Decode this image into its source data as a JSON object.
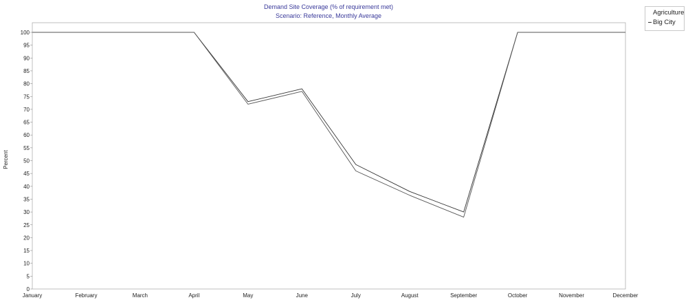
{
  "chart_data": {
    "type": "line",
    "title": "Demand Site Coverage (% of requirement met)",
    "subtitle": "Scenario: Reference,  Monthly Average",
    "ylabel": "Percent",
    "xlabel": "",
    "categories": [
      "January",
      "February",
      "March",
      "April",
      "May",
      "June",
      "July",
      "August",
      "September",
      "October",
      "November",
      "December"
    ],
    "ylim": [
      0,
      100
    ],
    "yticks": [
      0,
      5,
      10,
      15,
      20,
      25,
      30,
      35,
      40,
      45,
      50,
      55,
      60,
      65,
      70,
      75,
      80,
      85,
      90,
      95,
      100
    ],
    "grid": false,
    "legend_position": "top-right",
    "series": [
      {
        "name": "Agriculture",
        "values": [
          100,
          100,
          100,
          100,
          73,
          78,
          48.5,
          38,
          30,
          100,
          100,
          100
        ],
        "color": "#333333"
      },
      {
        "name": "Big City",
        "values": [
          100,
          100,
          100,
          100,
          72,
          77,
          46,
          36.5,
          28,
          100,
          100,
          100
        ],
        "color": "#555555"
      }
    ]
  }
}
